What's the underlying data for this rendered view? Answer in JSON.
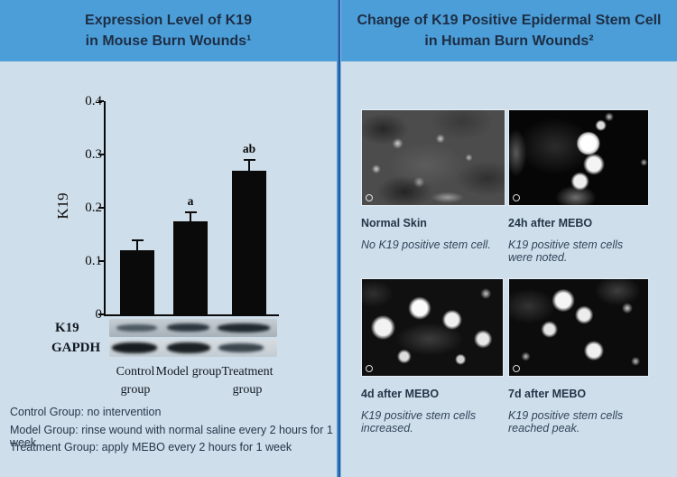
{
  "colors": {
    "page_bg": "#cfdeeb",
    "header_bg": "#4c9ed9",
    "divider_dark": "#1d5ea8",
    "header_text": "#1d2e44",
    "bar_color": "#0a0a0a"
  },
  "left_panel": {
    "title_line1": "Expression Level of K19",
    "title_line2": "in Mouse Burn Wounds¹",
    "blot": {
      "row1_label": "K19",
      "row2_label": "GAPDH"
    },
    "footnotes": [
      "Control Group: no intervention",
      "Model Group: rinse wound with normal saline every 2 hours for 1 week",
      "Treatment Group: apply MEBO every 2 hours for 1 week"
    ]
  },
  "right_panel": {
    "title_line1": "Change of K19 Positive Epidermal Stem Cell",
    "title_line2": "in Human Burn Wounds²",
    "images": [
      {
        "label": "Normal Skin",
        "caption": "No K19 positive stem cell."
      },
      {
        "label": "24h after MEBO",
        "caption": "K19 positive stem cells were noted."
      },
      {
        "label": "4d after MEBO",
        "caption": "K19 positive stem cells increased."
      },
      {
        "label": "7d after MEBO",
        "caption": "K19 positive stem cells reached peak."
      }
    ]
  },
  "chart_data": {
    "type": "bar",
    "categories": [
      "Control group",
      "Model group",
      "Treatment group"
    ],
    "values": [
      0.12,
      0.175,
      0.27
    ],
    "errors": [
      0.02,
      0.018,
      0.022
    ],
    "sig_labels": [
      "",
      "a",
      "ab"
    ],
    "title": "",
    "xlabel": "",
    "ylabel": "K19",
    "ylim": [
      0,
      0.4
    ],
    "yticks": [
      0,
      0.1,
      0.2,
      0.3,
      0.4
    ],
    "ytick_labels": [
      "0",
      "0.1",
      "0.2",
      "0.3",
      "0.4"
    ],
    "grid": false,
    "legend": false,
    "bar_color": "#0a0a0a"
  }
}
